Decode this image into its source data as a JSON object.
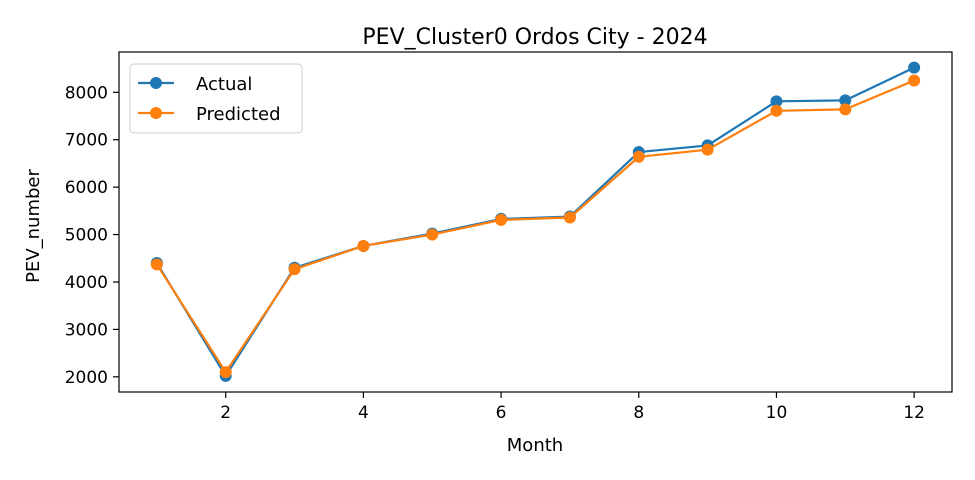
{
  "chart_data": {
    "type": "line",
    "title": "PEV_Cluster0 Ordos City - 2024",
    "xlabel": "Month",
    "ylabel": "PEV_number",
    "xlim": [
      0.45,
      12.55
    ],
    "ylim": [
      1680,
      8850
    ],
    "xticks": [
      2,
      4,
      6,
      8,
      10,
      12
    ],
    "yticks": [
      2000,
      3000,
      4000,
      5000,
      6000,
      7000,
      8000
    ],
    "grid": false,
    "legend_position": "upper-left",
    "x": [
      1,
      2,
      3,
      4,
      5,
      6,
      7,
      8,
      9,
      10,
      11,
      12
    ],
    "series": [
      {
        "name": "Actual",
        "color": "#1f77b4",
        "values": [
          4400,
          2020,
          4300,
          4760,
          5020,
          5330,
          5380,
          6740,
          6880,
          7810,
          7830,
          8520
        ]
      },
      {
        "name": "Predicted",
        "color": "#ff7f0e",
        "values": [
          4370,
          2100,
          4270,
          4760,
          5000,
          5310,
          5360,
          6640,
          6790,
          7610,
          7640,
          8250
        ]
      }
    ]
  }
}
